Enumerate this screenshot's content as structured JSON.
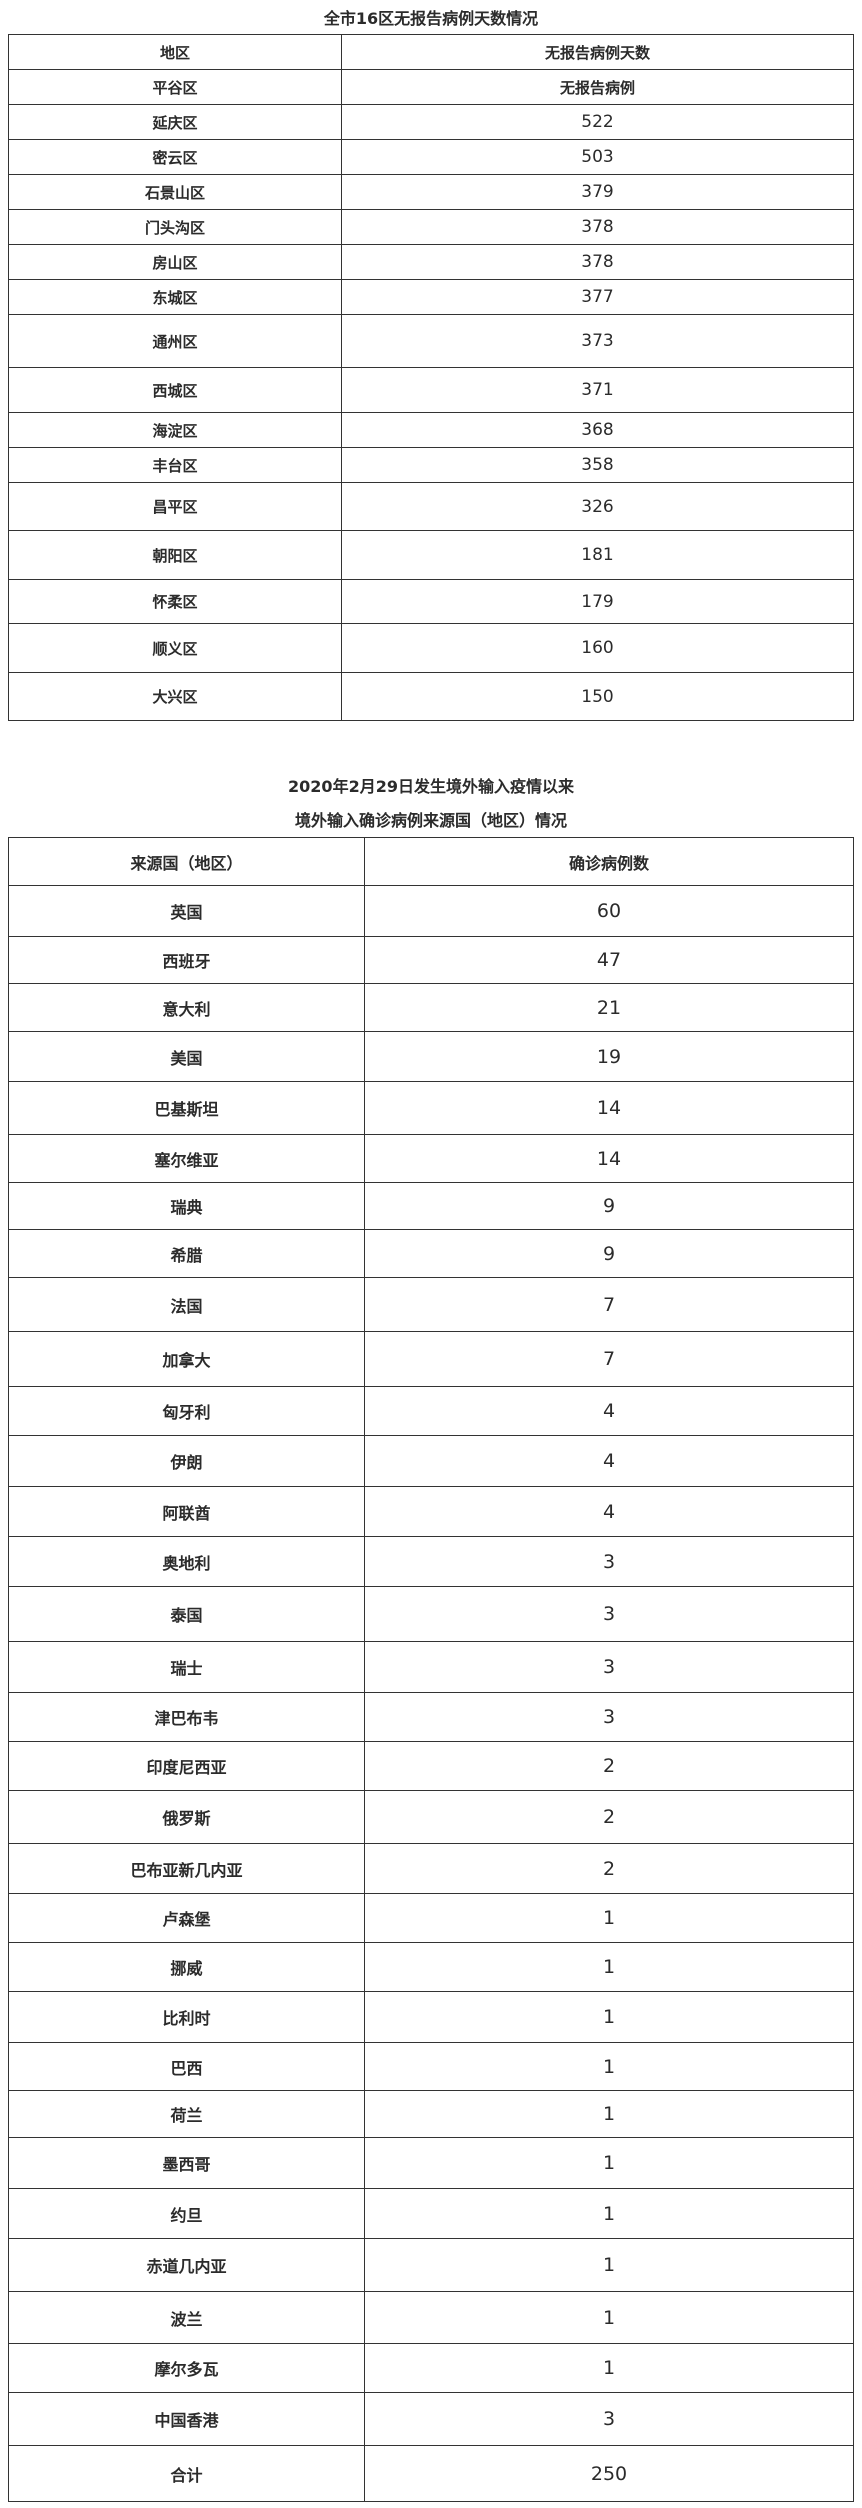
{
  "table1": {
    "title": "全市16区无报告病例天数情况",
    "headers": [
      "地区",
      "无报告病例天数"
    ],
    "rows": [
      {
        "region": "平谷区",
        "value": "无报告病例"
      },
      {
        "region": "延庆区",
        "value": "522"
      },
      {
        "region": "密云区",
        "value": "503"
      },
      {
        "region": "石景山区",
        "value": "379"
      },
      {
        "region": "门头沟区",
        "value": "378"
      },
      {
        "region": "房山区",
        "value": "378"
      },
      {
        "region": "东城区",
        "value": "377"
      },
      {
        "region": "通州区",
        "value": "373"
      },
      {
        "region": "西城区",
        "value": "371"
      },
      {
        "region": "海淀区",
        "value": "368"
      },
      {
        "region": "丰台区",
        "value": "358"
      },
      {
        "region": "昌平区",
        "value": "326"
      },
      {
        "region": "朝阳区",
        "value": "181"
      },
      {
        "region": "怀柔区",
        "value": "179"
      },
      {
        "region": "顺义区",
        "value": "160"
      },
      {
        "region": "大兴区",
        "value": "150"
      }
    ]
  },
  "table2": {
    "title_line1": "2020年2月29日发生境外输入疫情以来",
    "title_line2": "境外输入确诊病例来源国（地区）情况",
    "headers": [
      "来源国（地区）",
      "确诊病例数"
    ],
    "rows": [
      {
        "country": "英国",
        "value": "60"
      },
      {
        "country": "西班牙",
        "value": "47"
      },
      {
        "country": "意大利",
        "value": "21"
      },
      {
        "country": "美国",
        "value": "19"
      },
      {
        "country": "巴基斯坦",
        "value": "14"
      },
      {
        "country": "塞尔维亚",
        "value": "14"
      },
      {
        "country": "瑞典",
        "value": "9"
      },
      {
        "country": "希腊",
        "value": "9"
      },
      {
        "country": "法国",
        "value": "7"
      },
      {
        "country": "加拿大",
        "value": "7"
      },
      {
        "country": "匈牙利",
        "value": "4"
      },
      {
        "country": "伊朗",
        "value": "4"
      },
      {
        "country": "阿联酋",
        "value": "4"
      },
      {
        "country": "奥地利",
        "value": "3"
      },
      {
        "country": "泰国",
        "value": "3"
      },
      {
        "country": "瑞士",
        "value": "3"
      },
      {
        "country": "津巴布韦",
        "value": "3"
      },
      {
        "country": "印度尼西亚",
        "value": "2"
      },
      {
        "country": "俄罗斯",
        "value": "2"
      },
      {
        "country": "巴布亚新几内亚",
        "value": "2"
      },
      {
        "country": "卢森堡",
        "value": "1"
      },
      {
        "country": "挪威",
        "value": "1"
      },
      {
        "country": "比利时",
        "value": "1"
      },
      {
        "country": "巴西",
        "value": "1"
      },
      {
        "country": "荷兰",
        "value": "1"
      },
      {
        "country": "墨西哥",
        "value": "1"
      },
      {
        "country": "约旦",
        "value": "1"
      },
      {
        "country": "赤道几内亚",
        "value": "1"
      },
      {
        "country": "波兰",
        "value": "1"
      },
      {
        "country": "摩尔多瓦",
        "value": "1"
      },
      {
        "country": "中国香港",
        "value": "3"
      }
    ],
    "total": {
      "label": "合计",
      "value": "250"
    }
  }
}
